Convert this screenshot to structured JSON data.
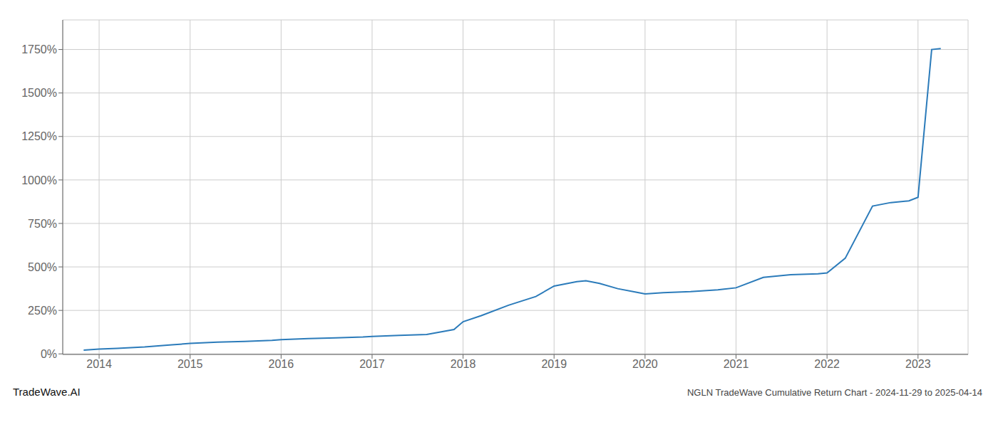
{
  "chart_data": {
    "type": "line",
    "title": "NGLN TradeWave Cumulative Return Chart - 2024-11-29 to 2025-04-14",
    "annotations": [
      "TradeWave.AI"
    ],
    "color": "#2b7bba",
    "grid": true,
    "xlim": [
      2013.6,
      2023.55
    ],
    "xticks": [
      2014,
      2015,
      2016,
      2017,
      2018,
      2019,
      2020,
      2021,
      2022,
      2023
    ],
    "ylim": [
      -0.03,
      19.2
    ],
    "yticks": [
      {
        "value": 0.0,
        "label": "0%"
      },
      {
        "value": 2.5,
        "label": "250%"
      },
      {
        "value": 5.0,
        "label": "500%"
      },
      {
        "value": 7.5,
        "label": "750%"
      },
      {
        "value": 10.0,
        "label": "1000%"
      },
      {
        "value": 12.5,
        "label": "1250%"
      },
      {
        "value": 15.0,
        "label": "1500%"
      },
      {
        "value": 17.5,
        "label": "1750%"
      }
    ],
    "x": [
      2013.83,
      2014.0,
      2014.2,
      2014.5,
      2014.8,
      2015.0,
      2015.3,
      2015.6,
      2015.9,
      2016.0,
      2016.3,
      2016.6,
      2016.9,
      2017.0,
      2017.3,
      2017.6,
      2017.9,
      2018.0,
      2018.2,
      2018.5,
      2018.8,
      2019.0,
      2019.15,
      2019.25,
      2019.35,
      2019.5,
      2019.7,
      2019.9,
      2020.0,
      2020.2,
      2020.5,
      2020.8,
      2021.0,
      2021.3,
      2021.6,
      2021.9,
      2022.0,
      2022.2,
      2022.5,
      2022.7,
      2022.9,
      2023.0,
      2023.15,
      2023.25
    ],
    "values": [
      0.22,
      0.28,
      0.32,
      0.4,
      0.52,
      0.6,
      0.68,
      0.72,
      0.78,
      0.82,
      0.88,
      0.92,
      0.97,
      1.0,
      1.06,
      1.12,
      1.4,
      1.85,
      2.2,
      2.8,
      3.3,
      3.9,
      4.05,
      4.15,
      4.2,
      4.05,
      3.75,
      3.55,
      3.45,
      3.52,
      3.58,
      3.68,
      3.8,
      4.4,
      4.55,
      4.6,
      4.65,
      5.5,
      8.5,
      8.7,
      8.8,
      9.0,
      17.5,
      17.55
    ]
  }
}
